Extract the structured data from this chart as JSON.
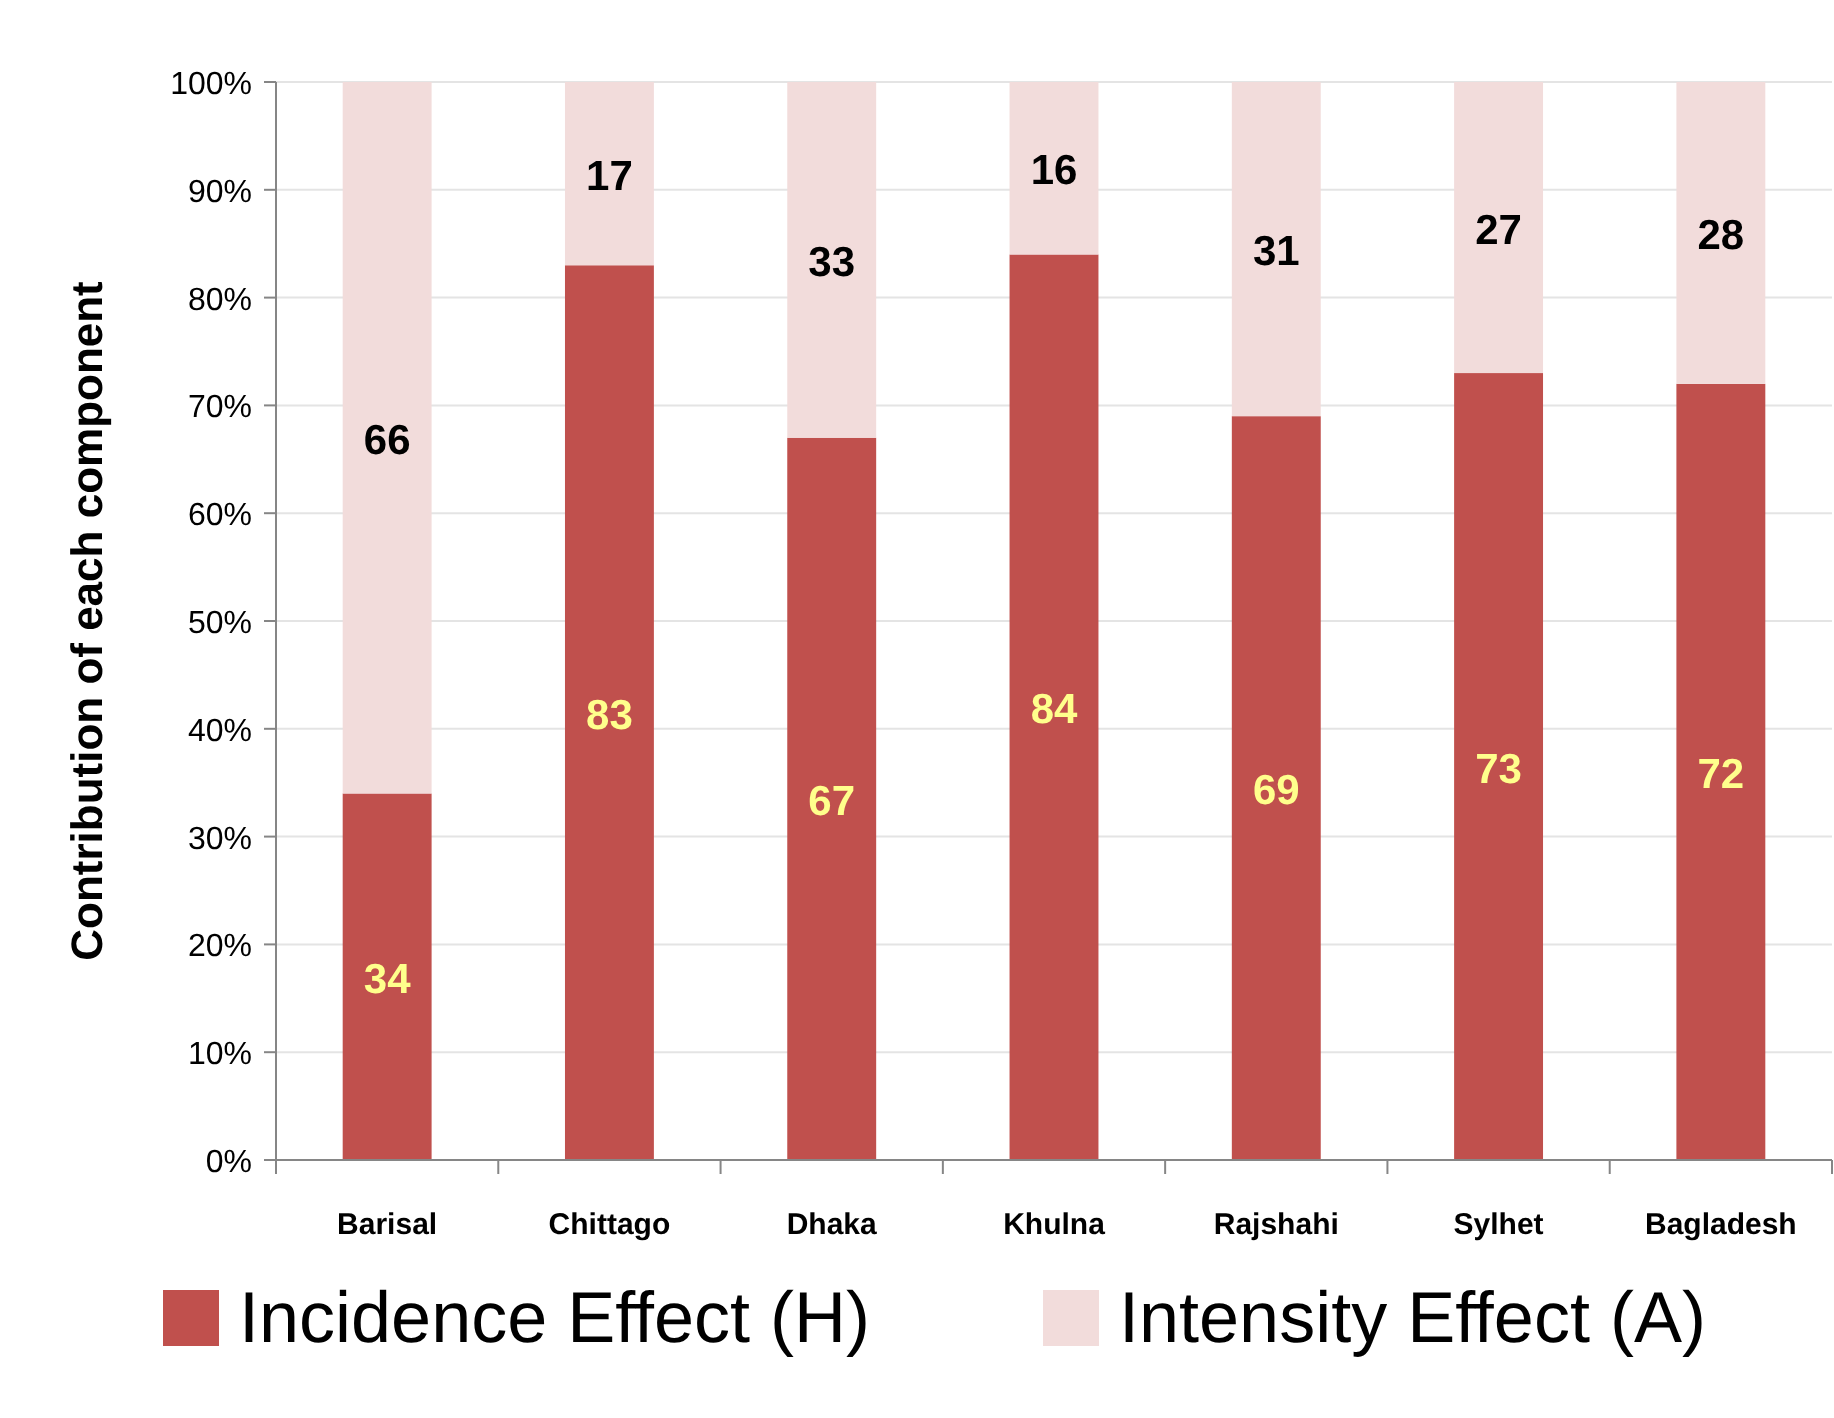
{
  "chart_data": {
    "type": "bar",
    "stacked": true,
    "ylabel": "Contribution of each component",
    "categories": [
      "Barisal",
      "Chittago",
      "Dhaka",
      "Khulna",
      "Rajshahi",
      "Sylhet",
      "Bagladesh"
    ],
    "series": [
      {
        "name": "Incidence Effect (H)",
        "color": "#c0504d",
        "values": [
          34,
          83,
          67,
          84,
          69,
          73,
          72
        ]
      },
      {
        "name": "Intensity Effect (A)",
        "color": "#f2dcdb",
        "values": [
          66,
          17,
          33,
          16,
          31,
          27,
          28
        ]
      }
    ],
    "ylim": [
      0,
      100
    ],
    "yticks": [
      {
        "value": 0,
        "label": "0%"
      },
      {
        "value": 10,
        "label": "10%"
      },
      {
        "value": 20,
        "label": "20%"
      },
      {
        "value": 30,
        "label": "30%"
      },
      {
        "value": 40,
        "label": "40%"
      },
      {
        "value": 50,
        "label": "50%"
      },
      {
        "value": 60,
        "label": "60%"
      },
      {
        "value": 70,
        "label": "70%"
      },
      {
        "value": 80,
        "label": "80%"
      },
      {
        "value": 90,
        "label": "90%"
      },
      {
        "value": 100,
        "label": "100%"
      }
    ],
    "grid": "y",
    "data_labels": true,
    "legend": "bottom"
  }
}
